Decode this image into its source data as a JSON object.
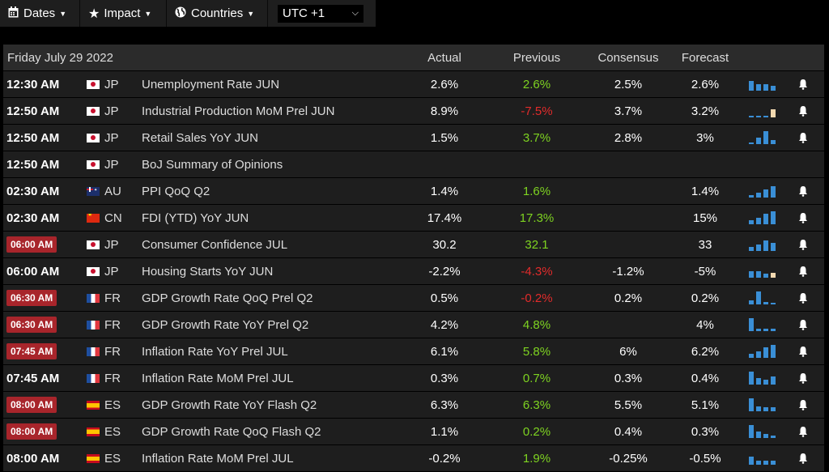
{
  "toolbar": {
    "dates_label": "Dates",
    "impact_label": "Impact",
    "countries_label": "Countries",
    "timezone": "UTC +1"
  },
  "table": {
    "date_label": "Friday July 29 2022",
    "headers": {
      "actual": "Actual",
      "previous": "Previous",
      "consensus": "Consensus",
      "forecast": "Forecast"
    }
  },
  "colors": {
    "green": "#7ed321",
    "red": "#e22b2b",
    "badge": "#a8252b",
    "spark": "#3a8fd6"
  },
  "events": [
    {
      "time": "12:30 AM",
      "highlight": false,
      "flag": "jp",
      "country": "JP",
      "event": "Unemployment Rate JUN",
      "actual": "2.6%",
      "previous": "2.6%",
      "previous_color": "green",
      "consensus": "2.5%",
      "forecast": "2.6%",
      "spark": [
        0.75,
        0.5,
        0.5,
        0.4
      ],
      "spark_tan": [],
      "has_spark": true
    },
    {
      "time": "12:50 AM",
      "highlight": false,
      "flag": "jp",
      "country": "JP",
      "event": "Industrial Production MoM Prel JUN",
      "actual": "8.9%",
      "previous": "-7.5%",
      "previous_color": "red",
      "consensus": "3.7%",
      "forecast": "3.2%",
      "spark": [
        0.1,
        0.1,
        0.1,
        0.6
      ],
      "spark_tan": [
        3
      ],
      "has_spark": true
    },
    {
      "time": "12:50 AM",
      "highlight": false,
      "flag": "jp",
      "country": "JP",
      "event": "Retail Sales YoY JUN",
      "actual": "1.5%",
      "previous": "3.7%",
      "previous_color": "green",
      "consensus": "2.8%",
      "forecast": "3%",
      "spark": [
        0.1,
        0.5,
        1.0,
        0.3
      ],
      "spark_tan": [],
      "has_spark": true
    },
    {
      "time": "12:50 AM",
      "highlight": false,
      "flag": "jp",
      "country": "JP",
      "event": "BoJ Summary of Opinions",
      "actual": "",
      "previous": "",
      "previous_color": "",
      "consensus": "",
      "forecast": "",
      "spark": [],
      "spark_tan": [],
      "has_spark": false
    },
    {
      "time": "02:30 AM",
      "highlight": false,
      "flag": "au",
      "country": "AU",
      "event": "PPI QoQ Q2",
      "actual": "1.4%",
      "previous": "1.6%",
      "previous_color": "green",
      "consensus": "",
      "forecast": "1.4%",
      "spark": [
        0.2,
        0.4,
        0.6,
        0.9
      ],
      "spark_tan": [],
      "has_spark": true
    },
    {
      "time": "02:30 AM",
      "highlight": false,
      "flag": "cn",
      "country": "CN",
      "event": "FDI (YTD) YoY JUN",
      "actual": "17.4%",
      "previous": "17.3%",
      "previous_color": "green",
      "consensus": "",
      "forecast": "15%",
      "spark": [
        0.3,
        0.5,
        0.8,
        1.0
      ],
      "spark_tan": [],
      "has_spark": true
    },
    {
      "time": "06:00 AM",
      "highlight": true,
      "flag": "jp",
      "country": "JP",
      "event": "Consumer Confidence JUL",
      "actual": "30.2",
      "previous": "32.1",
      "previous_color": "green",
      "consensus": "",
      "forecast": "33",
      "spark": [
        0.3,
        0.5,
        0.8,
        0.6
      ],
      "spark_tan": [],
      "has_spark": true
    },
    {
      "time": "06:00 AM",
      "highlight": false,
      "flag": "jp",
      "country": "JP",
      "event": "Housing Starts YoY JUN",
      "actual": "-2.2%",
      "previous": "-4.3%",
      "previous_color": "red",
      "consensus": "-1.2%",
      "forecast": "-5%",
      "spark": [
        0.5,
        0.5,
        0.3,
        0.4
      ],
      "spark_tan": [
        3
      ],
      "has_spark": true
    },
    {
      "time": "06:30 AM",
      "highlight": true,
      "flag": "fr",
      "country": "FR",
      "event": "GDP Growth Rate QoQ Prel Q2",
      "actual": "0.5%",
      "previous": "-0.2%",
      "previous_color": "red",
      "consensus": "0.2%",
      "forecast": "0.2%",
      "spark": [
        0.3,
        1.0,
        0.2,
        0.1
      ],
      "spark_tan": [],
      "has_spark": true
    },
    {
      "time": "06:30 AM",
      "highlight": true,
      "flag": "fr",
      "country": "FR",
      "event": "GDP Growth Rate YoY Prel Q2",
      "actual": "4.2%",
      "previous": "4.8%",
      "previous_color": "green",
      "consensus": "",
      "forecast": "4%",
      "spark": [
        1.0,
        0.2,
        0.2,
        0.2
      ],
      "spark_tan": [],
      "has_spark": true
    },
    {
      "time": "07:45 AM",
      "highlight": true,
      "flag": "fr",
      "country": "FR",
      "event": "Inflation Rate YoY Prel JUL",
      "actual": "6.1%",
      "previous": "5.8%",
      "previous_color": "green",
      "consensus": "6%",
      "forecast": "6.2%",
      "spark": [
        0.3,
        0.5,
        0.8,
        1.0
      ],
      "spark_tan": [],
      "has_spark": true
    },
    {
      "time": "07:45 AM",
      "highlight": false,
      "flag": "fr",
      "country": "FR",
      "event": "Inflation Rate MoM Prel JUL",
      "actual": "0.3%",
      "previous": "0.7%",
      "previous_color": "green",
      "consensus": "0.3%",
      "forecast": "0.4%",
      "spark": [
        1.0,
        0.5,
        0.4,
        0.6
      ],
      "spark_tan": [],
      "has_spark": true
    },
    {
      "time": "08:00 AM",
      "highlight": true,
      "flag": "es",
      "country": "ES",
      "event": "GDP Growth Rate YoY Flash Q2",
      "actual": "6.3%",
      "previous": "6.3%",
      "previous_color": "green",
      "consensus": "5.5%",
      "forecast": "5.1%",
      "spark": [
        1.0,
        0.4,
        0.3,
        0.3
      ],
      "spark_tan": [],
      "has_spark": true
    },
    {
      "time": "08:00 AM",
      "highlight": true,
      "flag": "es",
      "country": "ES",
      "event": "GDP Growth Rate QoQ Flash Q2",
      "actual": "1.1%",
      "previous": "0.2%",
      "previous_color": "green",
      "consensus": "0.4%",
      "forecast": "0.3%",
      "spark": [
        1.0,
        0.5,
        0.3,
        0.2
      ],
      "spark_tan": [],
      "has_spark": true
    },
    {
      "time": "08:00 AM",
      "highlight": false,
      "flag": "es",
      "country": "ES",
      "event": "Inflation Rate MoM Prel JUL",
      "actual": "-0.2%",
      "previous": "1.9%",
      "previous_color": "green",
      "consensus": "-0.25%",
      "forecast": "-0.5%",
      "spark": [
        0.6,
        0.3,
        0.3,
        0.3
      ],
      "spark_tan": [],
      "has_spark": true
    }
  ]
}
